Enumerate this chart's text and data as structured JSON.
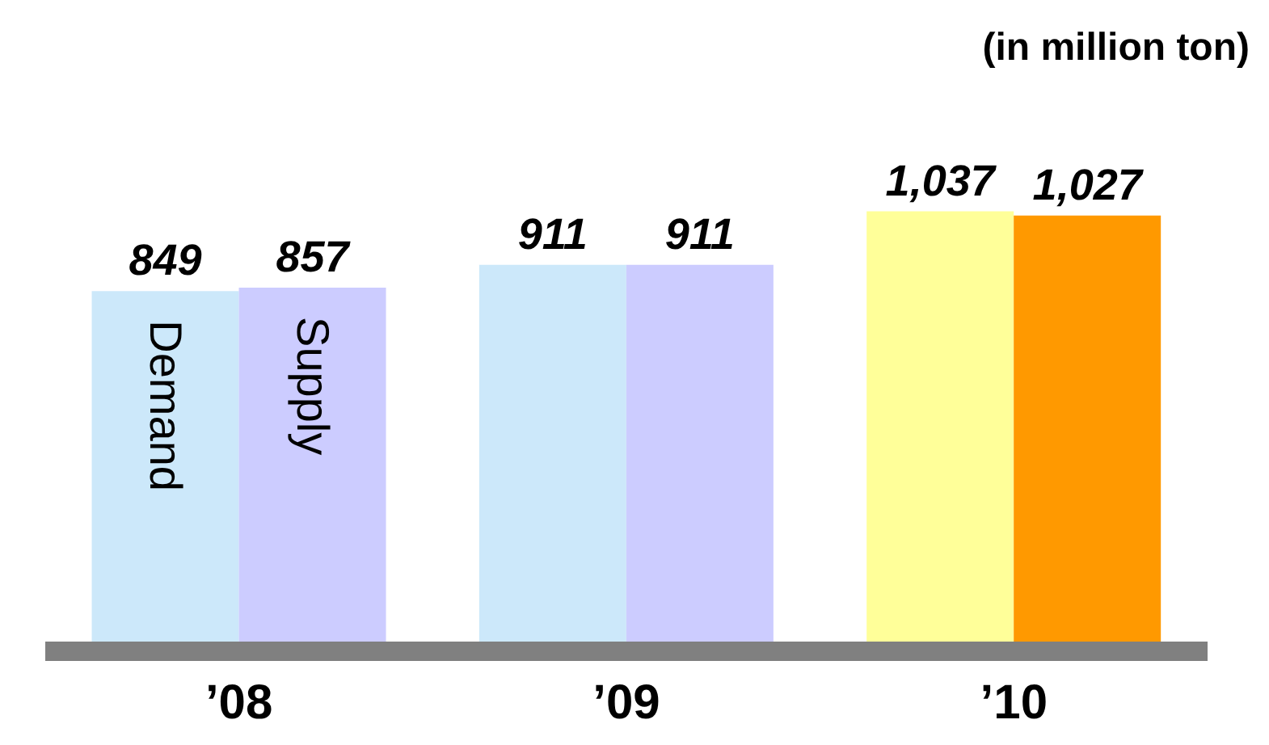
{
  "chart_data": {
    "type": "bar",
    "annotations": [
      "(in million ton)"
    ],
    "categories": [
      "’08",
      "’09",
      "’10"
    ],
    "series": [
      {
        "name": "Demand",
        "colors": [
          "#cce8fa",
          "#cce8fa",
          "#ffff99"
        ],
        "values": [
          849,
          911,
          1037
        ],
        "value_labels": [
          "849",
          "911",
          "1,037"
        ]
      },
      {
        "name": "Supply",
        "colors": [
          "#ccccff",
          "#ccccff",
          "#ff9900"
        ],
        "values": [
          857,
          911,
          1027
        ],
        "value_labels": [
          "857",
          "911",
          "1,027"
        ]
      }
    ],
    "tick_labels": "x",
    "grid": false,
    "legend": false
  }
}
